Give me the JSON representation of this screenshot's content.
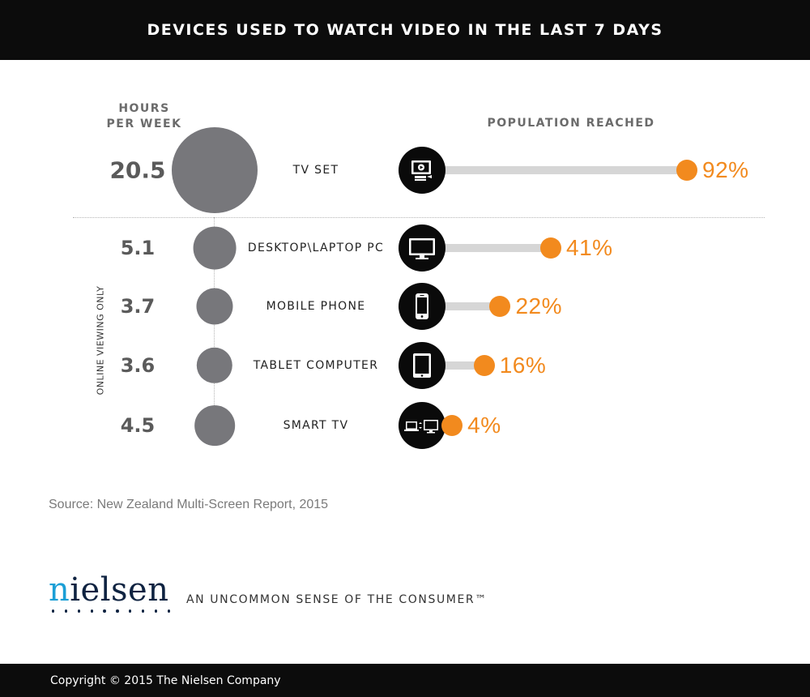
{
  "header": {
    "title": "DEVICES USED TO WATCH VIDEO IN THE LAST 7 DAYS"
  },
  "columns": {
    "hours_heading_line1": "HOURS",
    "hours_heading_line2": "PER WEEK",
    "population_heading": "POPULATION REACHED"
  },
  "side_label": "ONLINE VIEWING ONLY",
  "chart_data": {
    "type": "bar",
    "title": "DEVICES USED TO WATCH VIDEO IN THE LAST 7 DAYS",
    "categories": [
      "TV SET",
      "DESKTOP\\LAPTOP PC",
      "MOBILE PHONE",
      "TABLET COMPUTER",
      "SMART TV"
    ],
    "series": [
      {
        "name": "HOURS PER WEEK",
        "values": [
          20.5,
          5.1,
          3.7,
          3.6,
          4.5
        ],
        "labels": [
          "20.5",
          "5.1",
          "3.7",
          "3.6",
          "4.5"
        ],
        "color": "#77777b"
      },
      {
        "name": "POPULATION REACHED",
        "values": [
          92,
          41,
          22,
          16,
          4
        ],
        "labels": [
          "92%",
          "41%",
          "22%",
          "16%",
          "4%"
        ],
        "color": "#f28a1e"
      }
    ],
    "ylim": [
      0,
      100
    ],
    "icons": [
      "tv-set-icon",
      "desktop-laptop-icon",
      "mobile-phone-icon",
      "tablet-icon",
      "smart-tv-icon"
    ],
    "track_color": "#d6d6d6"
  },
  "source": "Source: New Zealand Multi-Screen Report, 2015",
  "brand": {
    "logo": "nielsen",
    "tagline": "AN UNCOMMON SENSE OF THE CONSUMER™"
  },
  "footer": {
    "copyright": "Copyright © 2015 The Nielsen Company"
  }
}
